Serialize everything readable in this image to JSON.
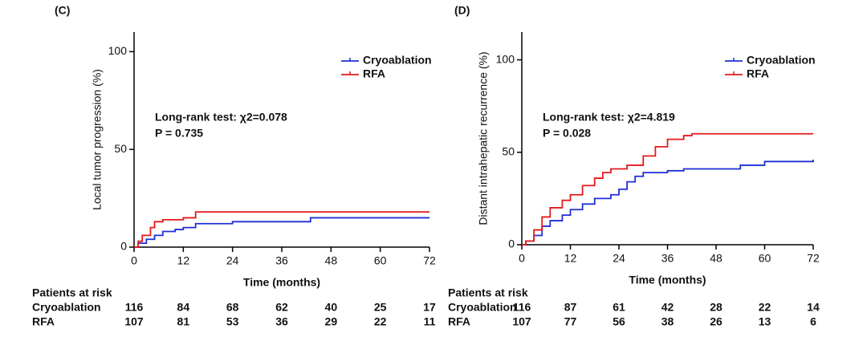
{
  "chart_data": [
    {
      "type": "step",
      "panel_label": "(C)",
      "y_label": "Local tumor progression (%)",
      "x_label": "Time (months)",
      "xlim": [
        0,
        72
      ],
      "xticks": [
        0,
        12,
        24,
        36,
        48,
        60,
        72
      ],
      "ylim": [
        0,
        110
      ],
      "yticks": [
        0,
        50,
        100
      ],
      "legend": "top-right",
      "annotations": [
        "Long-rank test:  χ2=0.078",
        "P = 0.735"
      ],
      "series": [
        {
          "name": "Cryoablation",
          "color": "#1f2fd6",
          "x": [
            0,
            1,
            3,
            5,
            7,
            10,
            12,
            15,
            24,
            43,
            72
          ],
          "values": [
            0,
            2,
            4,
            6,
            8,
            9,
            10,
            12,
            13,
            15,
            15
          ]
        },
        {
          "name": "RFA",
          "color": "#e41a1c",
          "x": [
            0,
            1,
            2,
            4,
            5,
            7,
            12,
            15,
            72
          ],
          "values": [
            0,
            3,
            6,
            10,
            13,
            14,
            15,
            18,
            18
          ]
        }
      ],
      "risk_table": {
        "title": "Patients at risk",
        "rows": [
          {
            "name": "Cryoablation",
            "values": [
              116,
              84,
              68,
              62,
              40,
              25,
              17
            ]
          },
          {
            "name": "RFA",
            "values": [
              107,
              81,
              53,
              36,
              29,
              22,
              11
            ]
          }
        ]
      }
    },
    {
      "type": "step",
      "panel_label": "(D)",
      "y_label": "Distant intrahepatic recurrence (%)",
      "x_label": "Time (months)",
      "xlim": [
        0,
        72
      ],
      "xticks": [
        0,
        12,
        24,
        36,
        48,
        60,
        72
      ],
      "ylim": [
        0,
        115
      ],
      "yticks": [
        0,
        50,
        100
      ],
      "legend": "top-right",
      "annotations": [
        "Long-rank test:  χ2=4.819",
        "P = 0.028"
      ],
      "series": [
        {
          "name": "Cryoablation",
          "color": "#1f2fd6",
          "x": [
            0,
            1,
            3,
            5,
            7,
            10,
            12,
            15,
            18,
            22,
            24,
            26,
            28,
            30,
            36,
            40,
            54,
            60,
            72
          ],
          "values": [
            0,
            2,
            5,
            10,
            13,
            16,
            19,
            22,
            25,
            27,
            30,
            34,
            37,
            39,
            40,
            41,
            43,
            45,
            46
          ]
        },
        {
          "name": "RFA",
          "color": "#e41a1c",
          "x": [
            0,
            1,
            3,
            5,
            7,
            10,
            12,
            15,
            18,
            20,
            22,
            26,
            30,
            33,
            36,
            40,
            42,
            72
          ],
          "values": [
            0,
            2,
            8,
            15,
            20,
            24,
            27,
            32,
            36,
            39,
            41,
            43,
            48,
            53,
            57,
            59,
            60,
            60
          ]
        }
      ],
      "risk_table": {
        "title": "Patients at risk",
        "rows": [
          {
            "name": "Cryoablation",
            "values": [
              116,
              87,
              61,
              42,
              28,
              22,
              14
            ]
          },
          {
            "name": "RFA",
            "values": [
              107,
              77,
              56,
              38,
              26,
              13,
              6
            ]
          }
        ]
      }
    }
  ]
}
